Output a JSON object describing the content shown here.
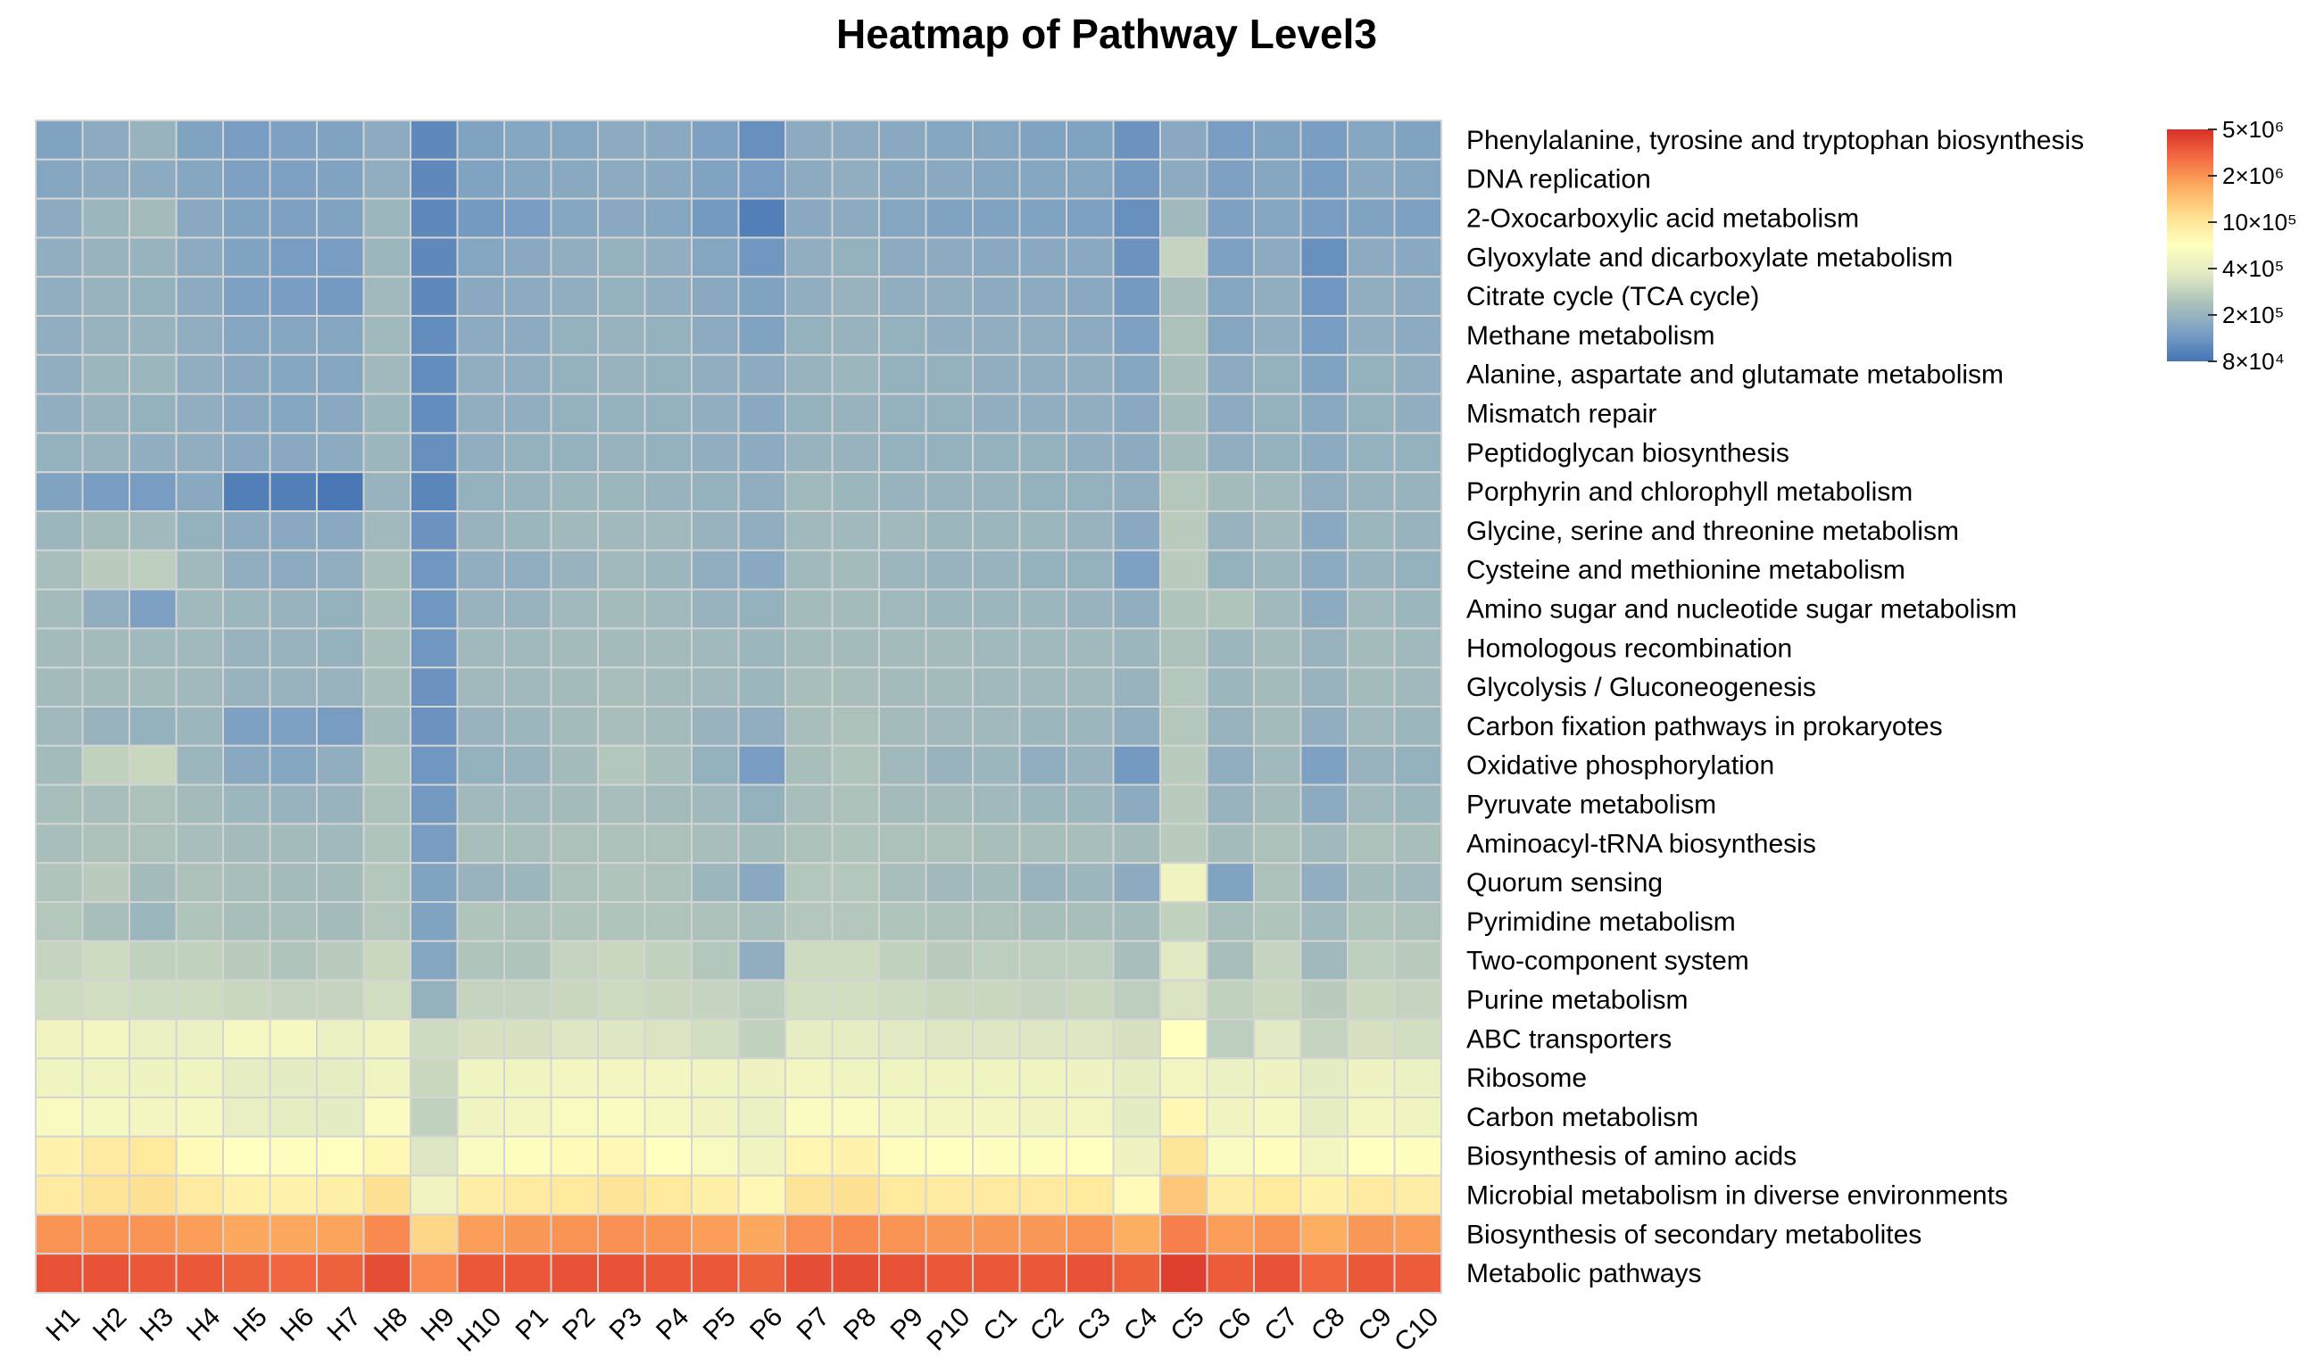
{
  "chart_data": {
    "type": "heatmap",
    "title": "Heatmap of Pathway Level3",
    "columns": [
      "H1",
      "H2",
      "H3",
      "H4",
      "H5",
      "H6",
      "H7",
      "H8",
      "H9",
      "H10",
      "P1",
      "P2",
      "P3",
      "P4",
      "P5",
      "P6",
      "P7",
      "P8",
      "P9",
      "P10",
      "C1",
      "C2",
      "C3",
      "C4",
      "C5",
      "C6",
      "C7",
      "C8",
      "C9",
      "C10"
    ],
    "rows": [
      "Phenylalanine, tyrosine and tryptophan biosynthesis",
      "DNA replication",
      "2-Oxocarboxylic acid metabolism",
      "Glyoxylate and dicarboxylate metabolism",
      "Citrate cycle (TCA cycle)",
      "Methane metabolism",
      "Alanine, aspartate and glutamate metabolism",
      "Mismatch repair",
      "Peptidoglycan biosynthesis",
      "Porphyrin and chlorophyll metabolism",
      "Glycine, serine and threonine metabolism",
      "Cysteine and methionine metabolism",
      "Amino sugar and nucleotide sugar metabolism",
      "Homologous recombination",
      "Glycolysis / Gluconeogenesis",
      "Carbon fixation pathways in prokaryotes",
      "Oxidative phosphorylation",
      "Pyruvate metabolism",
      "Aminoacyl-tRNA biosynthesis",
      "Quorum sensing",
      "Pyrimidine metabolism",
      "Two-component system",
      "Purine metabolism",
      "ABC transporters",
      "Ribosome",
      "Carbon metabolism",
      "Biosynthesis of amino acids",
      "Microbial metabolism in diverse environments",
      "Biosynthesis of secondary metabolites",
      "Metabolic pathways"
    ],
    "scale_note": "values are log10-scale color positions: 0 = 8x10^4, 1 = 5x10^6",
    "values": [
      [
        0.14,
        0.17,
        0.2,
        0.14,
        0.12,
        0.13,
        0.14,
        0.17,
        0.06,
        0.14,
        0.15,
        0.15,
        0.17,
        0.16,
        0.13,
        0.08,
        0.17,
        0.17,
        0.16,
        0.15,
        0.15,
        0.14,
        0.14,
        0.09,
        0.16,
        0.12,
        0.14,
        0.12,
        0.15,
        0.14
      ],
      [
        0.15,
        0.17,
        0.17,
        0.15,
        0.13,
        0.13,
        0.14,
        0.18,
        0.06,
        0.14,
        0.15,
        0.16,
        0.17,
        0.16,
        0.14,
        0.12,
        0.17,
        0.18,
        0.16,
        0.16,
        0.15,
        0.15,
        0.15,
        0.11,
        0.17,
        0.13,
        0.15,
        0.12,
        0.16,
        0.15
      ],
      [
        0.17,
        0.21,
        0.23,
        0.16,
        0.14,
        0.13,
        0.14,
        0.21,
        0.06,
        0.11,
        0.12,
        0.15,
        0.16,
        0.15,
        0.11,
        0.03,
        0.16,
        0.17,
        0.15,
        0.14,
        0.14,
        0.14,
        0.13,
        0.08,
        0.22,
        0.13,
        0.15,
        0.12,
        0.14,
        0.13
      ],
      [
        0.18,
        0.2,
        0.2,
        0.17,
        0.14,
        0.12,
        0.12,
        0.21,
        0.06,
        0.15,
        0.16,
        0.18,
        0.19,
        0.18,
        0.15,
        0.1,
        0.18,
        0.19,
        0.17,
        0.17,
        0.16,
        0.16,
        0.16,
        0.09,
        0.31,
        0.13,
        0.17,
        0.08,
        0.17,
        0.16
      ],
      [
        0.18,
        0.2,
        0.19,
        0.17,
        0.13,
        0.12,
        0.11,
        0.22,
        0.06,
        0.16,
        0.17,
        0.18,
        0.19,
        0.18,
        0.16,
        0.14,
        0.18,
        0.2,
        0.18,
        0.18,
        0.17,
        0.17,
        0.16,
        0.11,
        0.24,
        0.15,
        0.18,
        0.1,
        0.18,
        0.17
      ],
      [
        0.18,
        0.2,
        0.2,
        0.18,
        0.15,
        0.15,
        0.15,
        0.22,
        0.07,
        0.17,
        0.17,
        0.19,
        0.2,
        0.19,
        0.17,
        0.14,
        0.19,
        0.2,
        0.19,
        0.18,
        0.18,
        0.18,
        0.17,
        0.13,
        0.25,
        0.15,
        0.18,
        0.12,
        0.18,
        0.17
      ],
      [
        0.18,
        0.21,
        0.21,
        0.18,
        0.16,
        0.15,
        0.15,
        0.22,
        0.07,
        0.18,
        0.18,
        0.19,
        0.2,
        0.19,
        0.18,
        0.17,
        0.2,
        0.21,
        0.19,
        0.19,
        0.18,
        0.18,
        0.18,
        0.15,
        0.24,
        0.17,
        0.19,
        0.14,
        0.19,
        0.18
      ],
      [
        0.18,
        0.2,
        0.19,
        0.18,
        0.16,
        0.15,
        0.16,
        0.21,
        0.07,
        0.18,
        0.18,
        0.19,
        0.19,
        0.19,
        0.18,
        0.16,
        0.19,
        0.2,
        0.19,
        0.19,
        0.18,
        0.18,
        0.18,
        0.16,
        0.23,
        0.17,
        0.19,
        0.16,
        0.19,
        0.18
      ],
      [
        0.19,
        0.2,
        0.18,
        0.18,
        0.16,
        0.16,
        0.17,
        0.21,
        0.08,
        0.18,
        0.19,
        0.19,
        0.2,
        0.19,
        0.18,
        0.17,
        0.2,
        0.2,
        0.19,
        0.19,
        0.19,
        0.19,
        0.18,
        0.17,
        0.23,
        0.18,
        0.19,
        0.17,
        0.19,
        0.19
      ],
      [
        0.14,
        0.12,
        0.12,
        0.16,
        0.03,
        0.03,
        0.01,
        0.2,
        0.05,
        0.19,
        0.2,
        0.21,
        0.21,
        0.2,
        0.19,
        0.18,
        0.22,
        0.21,
        0.2,
        0.2,
        0.2,
        0.19,
        0.19,
        0.18,
        0.27,
        0.23,
        0.22,
        0.18,
        0.2,
        0.2
      ],
      [
        0.21,
        0.23,
        0.22,
        0.19,
        0.17,
        0.16,
        0.16,
        0.22,
        0.09,
        0.2,
        0.21,
        0.22,
        0.22,
        0.22,
        0.2,
        0.18,
        0.22,
        0.22,
        0.22,
        0.21,
        0.21,
        0.21,
        0.2,
        0.16,
        0.28,
        0.2,
        0.22,
        0.16,
        0.21,
        0.2
      ],
      [
        0.24,
        0.28,
        0.29,
        0.22,
        0.18,
        0.17,
        0.18,
        0.24,
        0.1,
        0.18,
        0.18,
        0.2,
        0.22,
        0.21,
        0.18,
        0.16,
        0.22,
        0.23,
        0.21,
        0.2,
        0.2,
        0.19,
        0.19,
        0.13,
        0.28,
        0.19,
        0.21,
        0.17,
        0.2,
        0.19
      ],
      [
        0.23,
        0.18,
        0.13,
        0.22,
        0.21,
        0.2,
        0.19,
        0.24,
        0.1,
        0.2,
        0.2,
        0.22,
        0.23,
        0.22,
        0.2,
        0.19,
        0.23,
        0.23,
        0.22,
        0.21,
        0.21,
        0.21,
        0.2,
        0.18,
        0.26,
        0.26,
        0.22,
        0.17,
        0.22,
        0.21
      ],
      [
        0.23,
        0.23,
        0.22,
        0.22,
        0.2,
        0.2,
        0.19,
        0.24,
        0.1,
        0.22,
        0.22,
        0.23,
        0.23,
        0.23,
        0.22,
        0.21,
        0.23,
        0.23,
        0.23,
        0.23,
        0.22,
        0.22,
        0.22,
        0.21,
        0.25,
        0.21,
        0.23,
        0.2,
        0.23,
        0.22
      ],
      [
        0.23,
        0.23,
        0.23,
        0.22,
        0.2,
        0.2,
        0.2,
        0.24,
        0.09,
        0.22,
        0.22,
        0.23,
        0.24,
        0.23,
        0.22,
        0.21,
        0.24,
        0.24,
        0.23,
        0.23,
        0.22,
        0.22,
        0.22,
        0.2,
        0.27,
        0.21,
        0.23,
        0.2,
        0.23,
        0.22
      ],
      [
        0.22,
        0.2,
        0.19,
        0.21,
        0.13,
        0.13,
        0.12,
        0.23,
        0.09,
        0.2,
        0.21,
        0.23,
        0.24,
        0.23,
        0.2,
        0.18,
        0.24,
        0.25,
        0.23,
        0.22,
        0.22,
        0.21,
        0.21,
        0.18,
        0.27,
        0.2,
        0.23,
        0.18,
        0.22,
        0.21
      ],
      [
        0.23,
        0.3,
        0.32,
        0.21,
        0.16,
        0.15,
        0.18,
        0.26,
        0.1,
        0.19,
        0.2,
        0.23,
        0.27,
        0.24,
        0.19,
        0.12,
        0.24,
        0.26,
        0.22,
        0.2,
        0.21,
        0.18,
        0.2,
        0.11,
        0.28,
        0.18,
        0.22,
        0.13,
        0.2,
        0.19
      ],
      [
        0.24,
        0.24,
        0.25,
        0.23,
        0.21,
        0.2,
        0.2,
        0.25,
        0.11,
        0.22,
        0.22,
        0.23,
        0.24,
        0.23,
        0.22,
        0.19,
        0.24,
        0.25,
        0.23,
        0.23,
        0.22,
        0.21,
        0.21,
        0.17,
        0.28,
        0.2,
        0.23,
        0.17,
        0.22,
        0.21
      ],
      [
        0.24,
        0.25,
        0.25,
        0.24,
        0.23,
        0.23,
        0.22,
        0.26,
        0.12,
        0.24,
        0.24,
        0.25,
        0.25,
        0.25,
        0.24,
        0.23,
        0.25,
        0.26,
        0.25,
        0.25,
        0.24,
        0.24,
        0.24,
        0.23,
        0.28,
        0.23,
        0.25,
        0.22,
        0.25,
        0.24
      ],
      [
        0.26,
        0.28,
        0.23,
        0.25,
        0.24,
        0.23,
        0.23,
        0.27,
        0.14,
        0.2,
        0.21,
        0.25,
        0.26,
        0.25,
        0.21,
        0.16,
        0.27,
        0.27,
        0.24,
        0.22,
        0.23,
        0.2,
        0.21,
        0.17,
        0.44,
        0.14,
        0.25,
        0.18,
        0.23,
        0.22
      ],
      [
        0.27,
        0.24,
        0.21,
        0.26,
        0.24,
        0.24,
        0.23,
        0.27,
        0.14,
        0.26,
        0.25,
        0.26,
        0.26,
        0.26,
        0.25,
        0.24,
        0.27,
        0.27,
        0.26,
        0.25,
        0.25,
        0.24,
        0.24,
        0.23,
        0.3,
        0.24,
        0.26,
        0.22,
        0.26,
        0.25
      ],
      [
        0.31,
        0.33,
        0.3,
        0.3,
        0.28,
        0.26,
        0.28,
        0.32,
        0.15,
        0.26,
        0.26,
        0.31,
        0.32,
        0.3,
        0.27,
        0.18,
        0.33,
        0.33,
        0.3,
        0.28,
        0.29,
        0.29,
        0.29,
        0.24,
        0.38,
        0.24,
        0.31,
        0.22,
        0.29,
        0.28
      ],
      [
        0.33,
        0.34,
        0.33,
        0.33,
        0.32,
        0.31,
        0.31,
        0.34,
        0.19,
        0.31,
        0.31,
        0.32,
        0.33,
        0.32,
        0.31,
        0.29,
        0.34,
        0.34,
        0.33,
        0.32,
        0.32,
        0.31,
        0.32,
        0.29,
        0.36,
        0.3,
        0.32,
        0.28,
        0.32,
        0.31
      ],
      [
        0.44,
        0.45,
        0.42,
        0.42,
        0.46,
        0.46,
        0.42,
        0.44,
        0.33,
        0.35,
        0.35,
        0.37,
        0.37,
        0.36,
        0.34,
        0.3,
        0.4,
        0.4,
        0.38,
        0.37,
        0.37,
        0.37,
        0.37,
        0.35,
        0.5,
        0.29,
        0.38,
        0.31,
        0.35,
        0.34
      ],
      [
        0.44,
        0.44,
        0.43,
        0.44,
        0.4,
        0.39,
        0.4,
        0.44,
        0.32,
        0.44,
        0.44,
        0.45,
        0.45,
        0.45,
        0.44,
        0.43,
        0.45,
        0.44,
        0.44,
        0.44,
        0.44,
        0.44,
        0.43,
        0.4,
        0.45,
        0.42,
        0.43,
        0.39,
        0.43,
        0.42
      ],
      [
        0.47,
        0.46,
        0.45,
        0.46,
        0.41,
        0.4,
        0.39,
        0.48,
        0.3,
        0.44,
        0.45,
        0.47,
        0.48,
        0.46,
        0.44,
        0.42,
        0.48,
        0.48,
        0.46,
        0.45,
        0.45,
        0.44,
        0.45,
        0.39,
        0.53,
        0.44,
        0.46,
        0.4,
        0.45,
        0.44
      ],
      [
        0.55,
        0.58,
        0.59,
        0.52,
        0.5,
        0.49,
        0.5,
        0.53,
        0.37,
        0.48,
        0.49,
        0.52,
        0.53,
        0.5,
        0.47,
        0.44,
        0.54,
        0.55,
        0.51,
        0.5,
        0.49,
        0.49,
        0.5,
        0.43,
        0.6,
        0.48,
        0.51,
        0.45,
        0.5,
        0.49
      ],
      [
        0.58,
        0.61,
        0.62,
        0.58,
        0.55,
        0.55,
        0.56,
        0.62,
        0.44,
        0.57,
        0.58,
        0.59,
        0.61,
        0.59,
        0.56,
        0.53,
        0.61,
        0.62,
        0.59,
        0.58,
        0.58,
        0.58,
        0.59,
        0.52,
        0.69,
        0.57,
        0.59,
        0.55,
        0.58,
        0.57
      ],
      [
        0.8,
        0.8,
        0.8,
        0.78,
        0.76,
        0.76,
        0.77,
        0.82,
        0.65,
        0.78,
        0.79,
        0.8,
        0.81,
        0.8,
        0.78,
        0.76,
        0.81,
        0.82,
        0.8,
        0.79,
        0.79,
        0.79,
        0.8,
        0.75,
        0.84,
        0.78,
        0.8,
        0.75,
        0.79,
        0.78
      ],
      [
        0.93,
        0.93,
        0.92,
        0.92,
        0.9,
        0.89,
        0.9,
        0.94,
        0.82,
        0.92,
        0.92,
        0.93,
        0.93,
        0.92,
        0.92,
        0.9,
        0.94,
        0.94,
        0.93,
        0.92,
        0.92,
        0.92,
        0.93,
        0.9,
        0.97,
        0.91,
        0.93,
        0.89,
        0.92,
        0.91
      ]
    ],
    "legend": {
      "position": "top-right",
      "labels": [
        "5×10⁶",
        "2×10⁶",
        "10×10⁵",
        "4×10⁵",
        "2×10⁵",
        "8×10⁴"
      ],
      "colors": [
        "#d73027",
        "#f46d43",
        "#fdae61",
        "#fee090",
        "#ffffbf",
        "#e0e9c3",
        "#abc1ba",
        "#7b9fc3",
        "#4575b4"
      ]
    },
    "gridline_color": "#d4d4d4"
  }
}
